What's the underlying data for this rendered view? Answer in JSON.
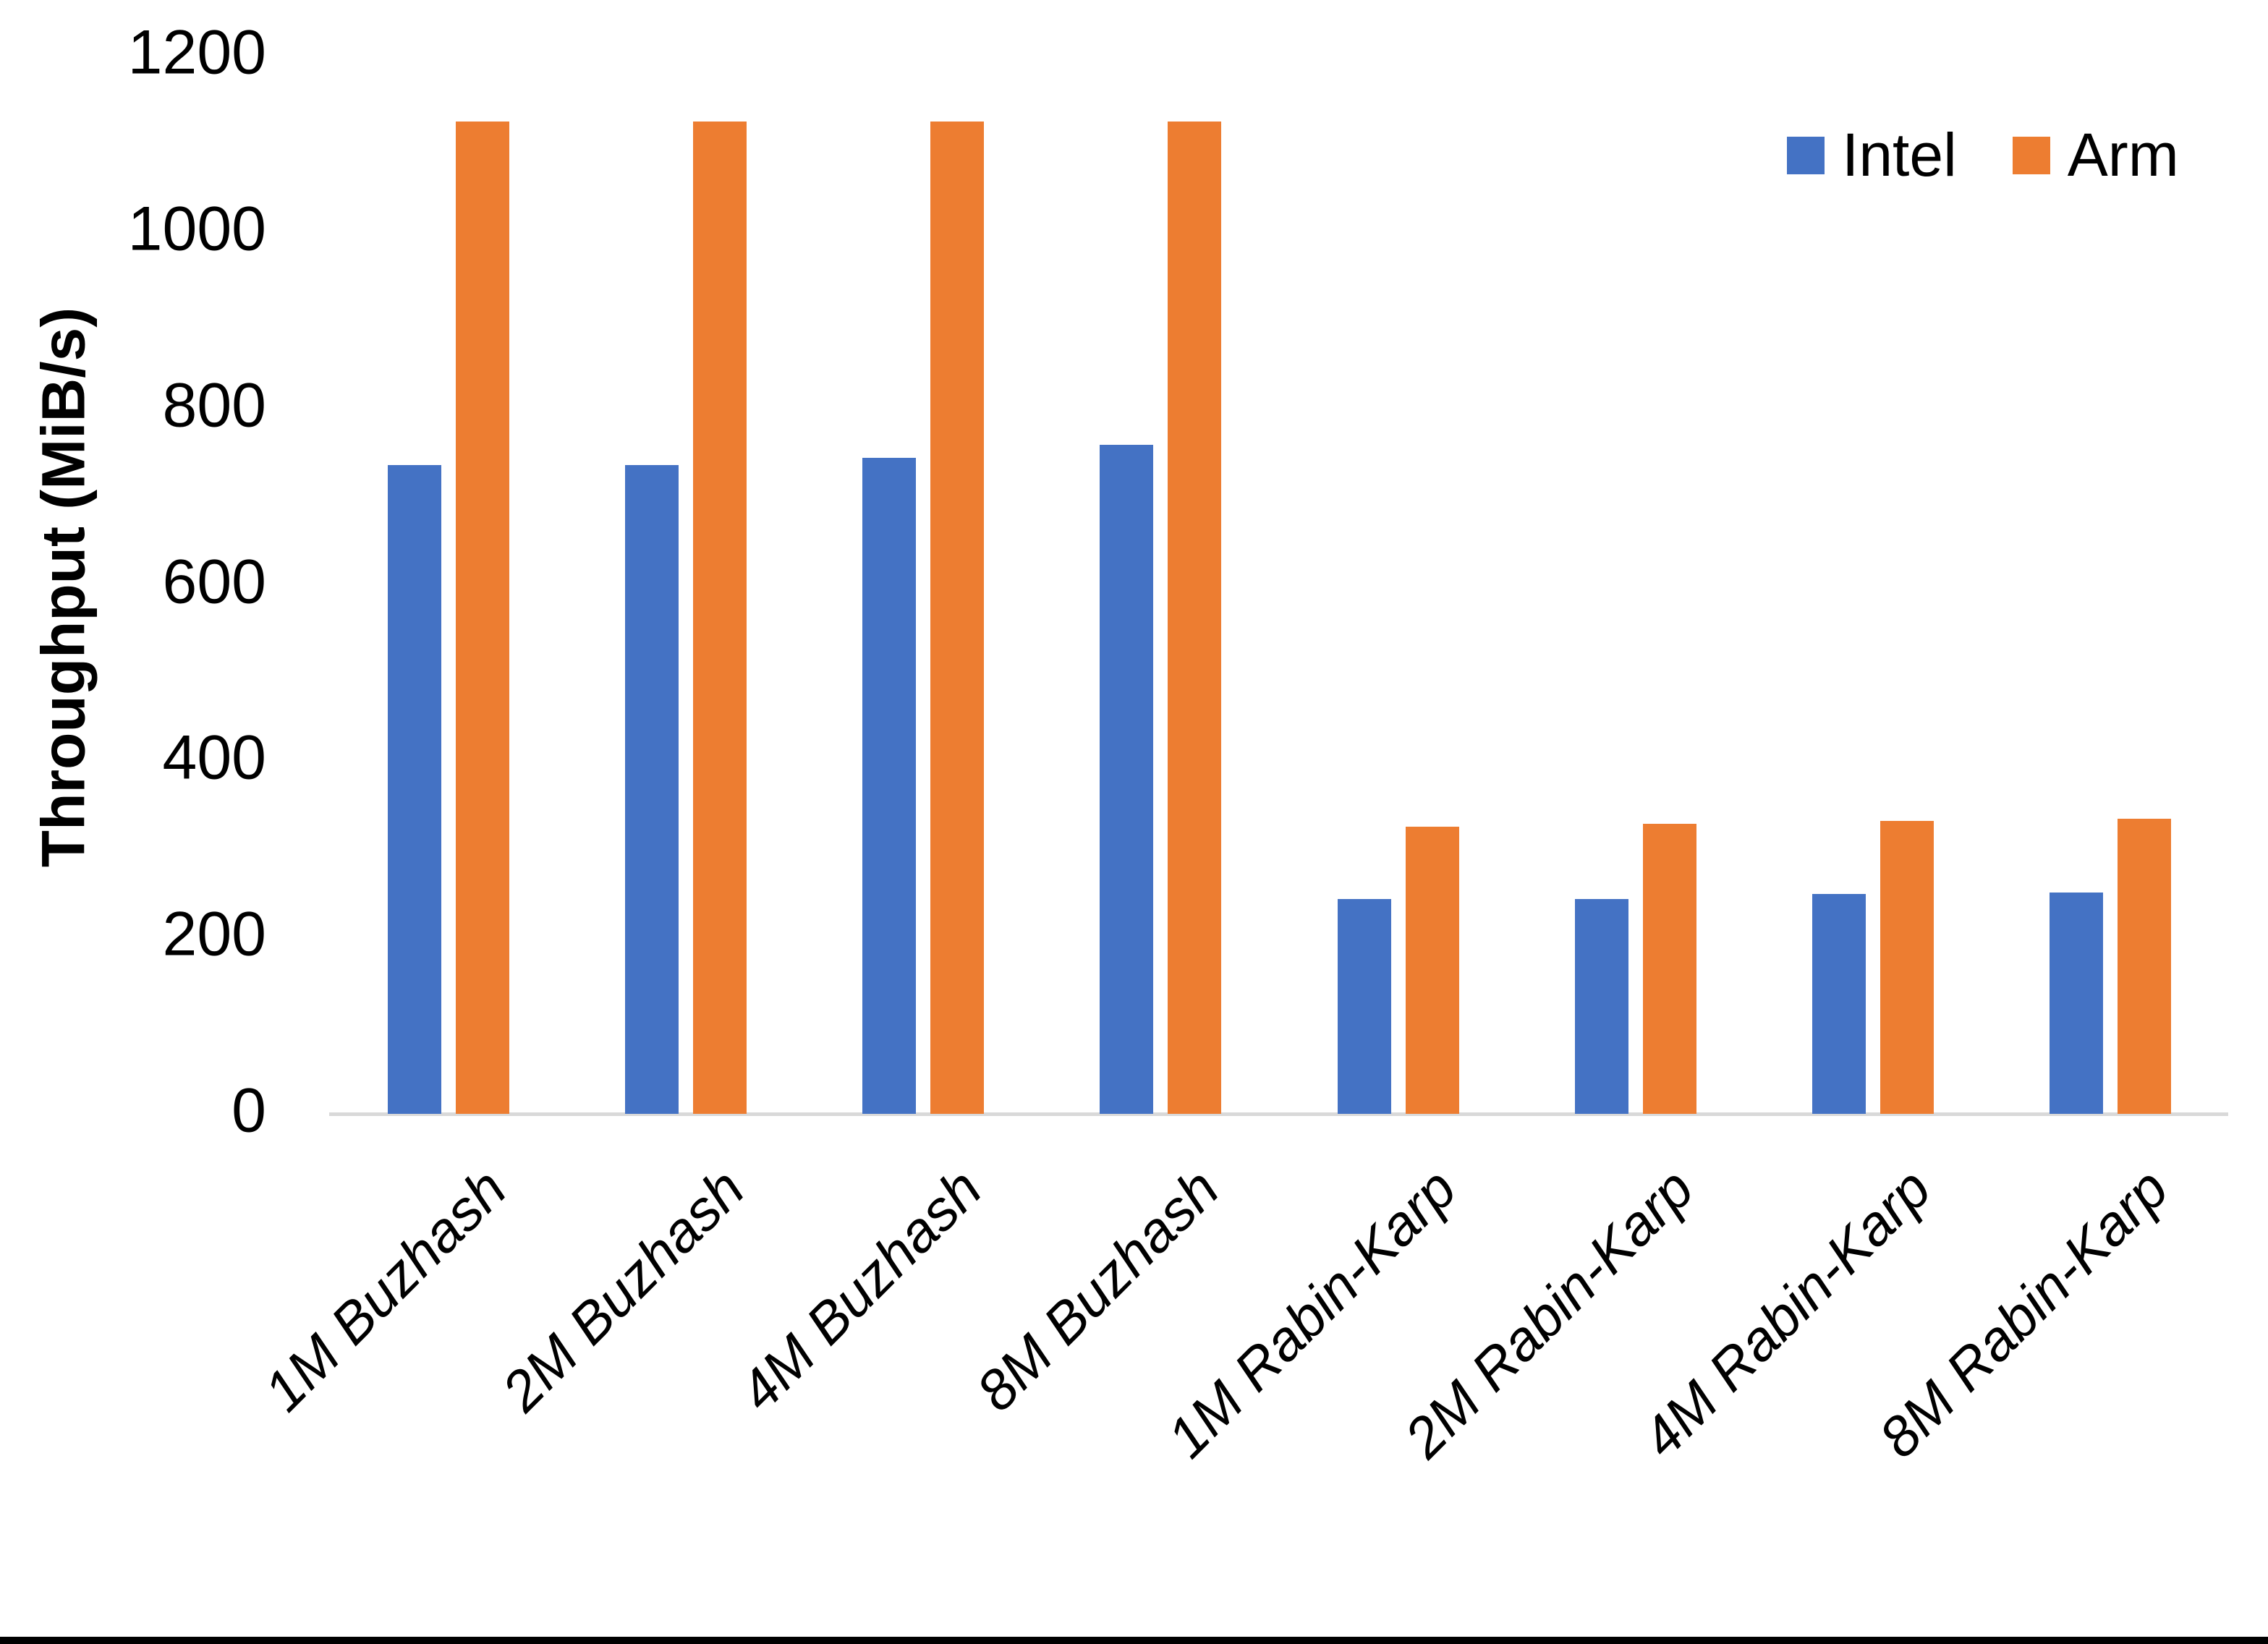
{
  "chart_data": {
    "type": "bar",
    "title": "",
    "ylabel": "Throughput (MiB/s)",
    "xlabel": "",
    "ylim": [
      0,
      1200
    ],
    "yticks": [
      0,
      200,
      400,
      600,
      800,
      1000,
      1200
    ],
    "grid": false,
    "legend_position": "top-right",
    "categories": [
      "1M Buzhash",
      "2M Buzhash",
      "4M Buzhash",
      "8M Buzhash",
      "1M Rabin-Karp",
      "2M Rabin-Karp",
      "4M Rabin-Karp",
      "8M Rabin-Karp"
    ],
    "series": [
      {
        "name": "Intel",
        "color": "#4472C4",
        "values": [
          736,
          736,
          744,
          759,
          244,
          244,
          249,
          251
        ]
      },
      {
        "name": "Arm",
        "color": "#ED7D31",
        "values": [
          1125,
          1125,
          1125,
          1125,
          326,
          329,
          332,
          335
        ]
      }
    ]
  },
  "colors": {
    "axis_line": "#D9D9D9",
    "text": "#000000",
    "background": "#FFFFFF",
    "bottom_bar": "#000000"
  }
}
